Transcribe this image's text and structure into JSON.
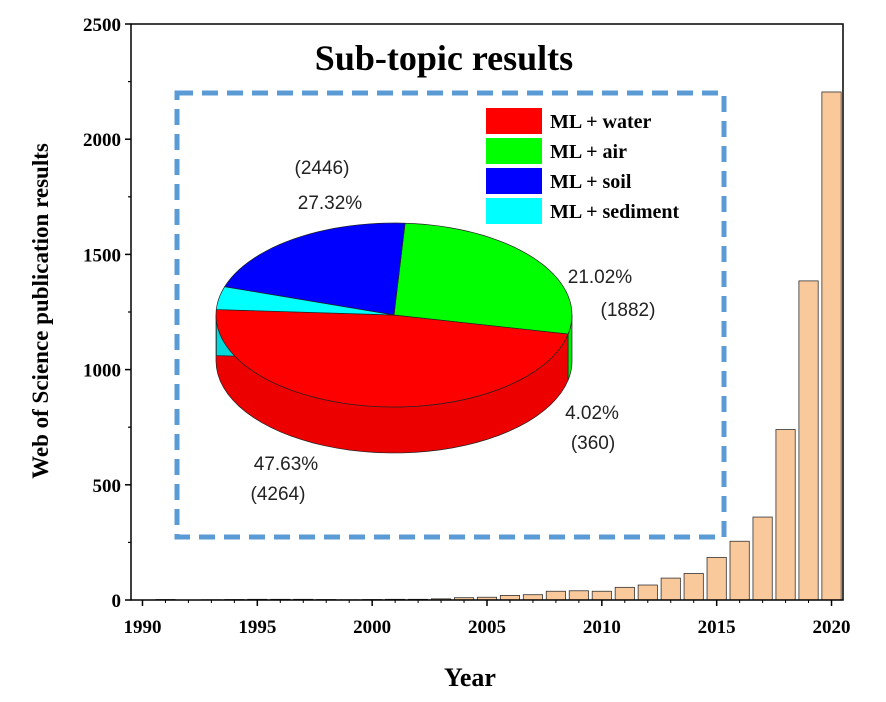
{
  "chart_data": [
    {
      "type": "bar",
      "title": "Sub-topic results",
      "xlabel": "Year",
      "ylabel": "Web of Science publication results",
      "xlim": [
        1989.5,
        2020.5
      ],
      "ylim": [
        0,
        2500
      ],
      "xticks": [
        "1990",
        "1995",
        "2000",
        "2005",
        "2010",
        "2015",
        "2020"
      ],
      "yticks": [
        "0",
        "500",
        "1000",
        "1500",
        "2000",
        "2500"
      ],
      "categories": [
        1991,
        1992,
        1993,
        1994,
        1995,
        1996,
        1997,
        1998,
        1999,
        2000,
        2001,
        2002,
        2003,
        2004,
        2005,
        2006,
        2007,
        2008,
        2009,
        2010,
        2011,
        2012,
        2013,
        2014,
        2015,
        2016,
        2017,
        2018,
        2019,
        2020
      ],
      "values": [
        2,
        0,
        1,
        2,
        3,
        3,
        3,
        2,
        1,
        2,
        3,
        3,
        5,
        10,
        12,
        20,
        23,
        38,
        40,
        38,
        55,
        65,
        95,
        115,
        185,
        255,
        360,
        740,
        1385,
        2205
      ],
      "bar_color": "#F9C89B"
    },
    {
      "type": "pie",
      "style": "3d",
      "legend": [
        "ML + water",
        "ML + air",
        "ML + soil",
        "ML + sediment"
      ],
      "slices": [
        {
          "name": "ML + water",
          "count": 4264,
          "percent": 47.63,
          "color": "#FF0000",
          "pct_label": "47.63%",
          "count_label": "(4264)"
        },
        {
          "name": "ML + air",
          "count": 2446,
          "percent": 27.32,
          "color": "#00FF00",
          "pct_label": "27.32%",
          "count_label": "(2446)"
        },
        {
          "name": "ML + soil",
          "count": 1882,
          "percent": 21.02,
          "color": "#0000FF",
          "pct_label": "21.02%",
          "count_label": "(1882)"
        },
        {
          "name": "ML + sediment",
          "count": 360,
          "percent": 4.02,
          "color": "#00FFFF",
          "pct_label": "4.02%",
          "count_label": "(360)"
        }
      ],
      "frame_color": "#5B9BD5"
    }
  ]
}
